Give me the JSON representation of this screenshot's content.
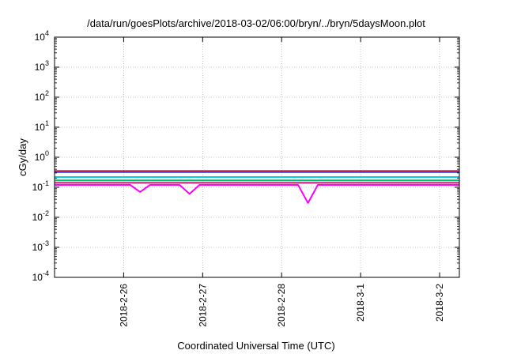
{
  "chart_data": {
    "type": "line",
    "title": "/data/run/goesPlots/archive/2018-03-02/06:00/bryn/../bryn/5daysMoon.plot",
    "xlabel": "Coordinated Universal Time (UTC)",
    "ylabel": "cGy/day",
    "y_scale": "log",
    "ylim": [
      0.0001,
      10000
    ],
    "xlim": [
      "2018-02-25T03:00",
      "2018-03-02T06:00"
    ],
    "grid": true,
    "y_ticks": [
      {
        "base": "10",
        "exp": "-4",
        "value": 0.0001
      },
      {
        "base": "10",
        "exp": "-3",
        "value": 0.001
      },
      {
        "base": "10",
        "exp": "-2",
        "value": 0.01
      },
      {
        "base": "10",
        "exp": "-1",
        "value": 0.1
      },
      {
        "base": "10",
        "exp": "0",
        "value": 1
      },
      {
        "base": "10",
        "exp": "1",
        "value": 10
      },
      {
        "base": "10",
        "exp": "2",
        "value": 100
      },
      {
        "base": "10",
        "exp": "3",
        "value": 1000
      },
      {
        "base": "10",
        "exp": "4",
        "value": 10000
      }
    ],
    "x_ticks": [
      {
        "label": "2018-2-26",
        "value": "2018-02-26T00:00"
      },
      {
        "label": "2018-2-27",
        "value": "2018-02-27T00:00"
      },
      {
        "label": "2018-2-28",
        "value": "2018-02-28T00:00"
      },
      {
        "label": "2018-3-1",
        "value": "2018-03-01T00:00"
      },
      {
        "label": "2018-3-2",
        "value": "2018-03-02T00:00"
      }
    ],
    "series": [
      {
        "color": "#ff00ff",
        "x": [
          "2018-02-25T03:00",
          "2018-02-25T05:00",
          "2018-02-25T08:00",
          "2018-02-25T11:00",
          "2018-02-25T14:00",
          "2018-02-25T17:00",
          "2018-02-25T20:00",
          "2018-02-25T23:00",
          "2018-02-26T02:00",
          "2018-02-26T05:00",
          "2018-02-26T08:00",
          "2018-02-26T11:00",
          "2018-02-26T14:00",
          "2018-02-26T17:00",
          "2018-02-26T20:00",
          "2018-02-26T23:00",
          "2018-02-27T02:00",
          "2018-02-27T05:00",
          "2018-02-27T08:00",
          "2018-02-27T11:00",
          "2018-02-27T14:00",
          "2018-02-27T17:00",
          "2018-02-27T20:00",
          "2018-02-27T23:00",
          "2018-02-28T02:00",
          "2018-02-28T05:00",
          "2018-02-28T08:00",
          "2018-02-28T11:00",
          "2018-02-28T14:00",
          "2018-02-28T17:00",
          "2018-02-28T20:00",
          "2018-02-28T23:00",
          "2018-03-01T02:00",
          "2018-03-01T05:00",
          "2018-03-01T08:00",
          "2018-03-01T11:00",
          "2018-03-01T14:00",
          "2018-03-01T17:00",
          "2018-03-01T20:00",
          "2018-03-01T23:00",
          "2018-03-02T02:00",
          "2018-03-02T06:00"
        ],
        "values": [
          0.12,
          0.12,
          0.12,
          0.12,
          0.12,
          0.12,
          0.12,
          0.12,
          0.12,
          0.07,
          0.12,
          0.12,
          0.12,
          0.12,
          0.06,
          0.12,
          0.12,
          0.12,
          0.12,
          0.12,
          0.12,
          0.12,
          0.12,
          0.12,
          0.12,
          0.12,
          0.03,
          0.12,
          0.12,
          0.12,
          0.12,
          0.12,
          0.12,
          0.12,
          0.12,
          0.12,
          0.12,
          0.12,
          0.12,
          0.12,
          0.12,
          0.12
        ]
      },
      {
        "color": "#e6007a",
        "x": [
          "2018-02-25T03:00",
          "2018-02-25T15:00",
          "2018-02-26T03:00",
          "2018-02-26T15:00",
          "2018-02-27T03:00",
          "2018-02-27T15:00",
          "2018-02-28T03:00",
          "2018-02-28T15:00",
          "2018-03-01T03:00",
          "2018-03-01T15:00",
          "2018-03-02T03:00",
          "2018-03-02T06:00"
        ],
        "values": [
          0.14,
          0.14,
          0.14,
          0.14,
          0.14,
          0.14,
          0.14,
          0.14,
          0.14,
          0.14,
          0.14,
          0.14
        ]
      },
      {
        "color": "#00c070",
        "x": [
          "2018-02-25T03:00",
          "2018-02-25T15:00",
          "2018-02-26T03:00",
          "2018-02-26T15:00",
          "2018-02-27T03:00",
          "2018-02-27T15:00",
          "2018-02-28T03:00",
          "2018-02-28T15:00",
          "2018-03-01T03:00",
          "2018-03-01T15:00",
          "2018-03-02T03:00",
          "2018-03-02T06:00"
        ],
        "values": [
          0.17,
          0.17,
          0.17,
          0.17,
          0.17,
          0.17,
          0.17,
          0.17,
          0.17,
          0.17,
          0.17,
          0.17
        ]
      },
      {
        "color": "#00d0e0",
        "x": [
          "2018-02-25T03:00",
          "2018-02-25T15:00",
          "2018-02-26T03:00",
          "2018-02-26T15:00",
          "2018-02-27T03:00",
          "2018-02-27T15:00",
          "2018-02-28T03:00",
          "2018-02-28T15:00",
          "2018-03-01T03:00",
          "2018-03-01T15:00",
          "2018-03-02T03:00",
          "2018-03-02T06:00"
        ],
        "values": [
          0.22,
          0.22,
          0.22,
          0.22,
          0.22,
          0.22,
          0.22,
          0.22,
          0.22,
          0.22,
          0.22,
          0.22
        ]
      },
      {
        "color": "#ff2020",
        "x": [
          "2018-02-25T03:00",
          "2018-02-25T15:00",
          "2018-02-26T03:00",
          "2018-02-26T15:00",
          "2018-02-27T03:00",
          "2018-02-27T15:00",
          "2018-02-28T03:00",
          "2018-02-28T15:00",
          "2018-03-01T03:00",
          "2018-03-01T15:00",
          "2018-03-02T03:00",
          "2018-03-02T06:00"
        ],
        "values": [
          0.35,
          0.35,
          0.35,
          0.35,
          0.35,
          0.35,
          0.35,
          0.35,
          0.35,
          0.35,
          0.35,
          0.35
        ]
      },
      {
        "color": "#2040ff",
        "x": [
          "2018-02-25T03:00",
          "2018-02-25T15:00",
          "2018-02-26T03:00",
          "2018-02-26T15:00",
          "2018-02-27T03:00",
          "2018-02-27T15:00",
          "2018-02-28T03:00",
          "2018-02-28T15:00",
          "2018-03-01T03:00",
          "2018-03-01T15:00",
          "2018-03-02T03:00",
          "2018-03-02T06:00"
        ],
        "values": [
          0.32,
          0.32,
          0.32,
          0.32,
          0.32,
          0.32,
          0.32,
          0.32,
          0.32,
          0.32,
          0.32,
          0.32
        ]
      }
    ]
  }
}
